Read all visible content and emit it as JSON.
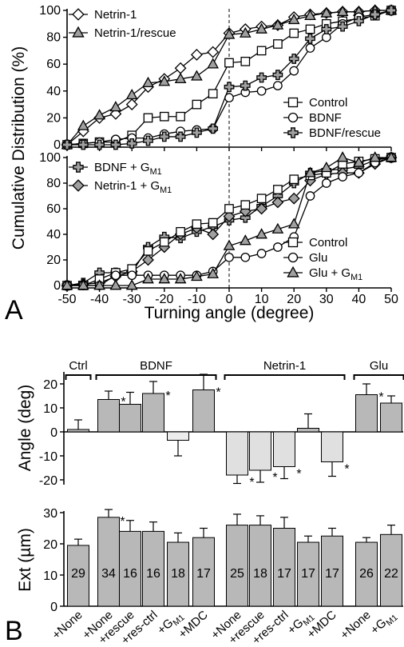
{
  "panel_labels": {
    "A": "A",
    "B": "B"
  },
  "chart_data": [
    {
      "type": "line",
      "panel": "A-top",
      "ylabel": "Cumulative Distribution (%)",
      "xlabel": "Turning angle (degree)",
      "xlim": [
        -50,
        50
      ],
      "ylim": [
        0,
        100
      ],
      "xticks": [
        "-50",
        "-40",
        "-30",
        "-20",
        "-10",
        "0",
        "10",
        "20",
        "30",
        "40",
        "50"
      ],
      "yticks": [
        "0",
        "20",
        "40",
        "60",
        "80",
        "100"
      ],
      "legend_top": "top-left",
      "legend_bottom": "bottom-right",
      "series": [
        {
          "name": "Netrin-1",
          "marker": "diamond",
          "fill": "#ffffff",
          "x": [
            -50,
            -45,
            -40,
            -35,
            -30,
            -25,
            -20,
            -15,
            -10,
            -5,
            0,
            5,
            10,
            15,
            20,
            25,
            30,
            35,
            40,
            45,
            50
          ],
          "y": [
            0,
            10,
            20,
            23,
            30,
            43,
            49,
            57,
            67,
            69,
            83,
            86,
            88,
            89,
            95,
            97,
            98,
            99,
            99,
            100,
            100
          ]
        },
        {
          "name": "Netrin-1/rescue",
          "marker": "triangle",
          "fill": "#a0a0a0",
          "x": [
            -50,
            -45,
            -40,
            -35,
            -30,
            -25,
            -20,
            -15,
            -10,
            -5,
            0,
            5,
            10,
            15,
            20,
            25,
            30,
            35,
            40,
            45,
            50
          ],
          "y": [
            0,
            14,
            22,
            28,
            37,
            46,
            47,
            49,
            51,
            60,
            82,
            83,
            86,
            89,
            93,
            96,
            98,
            99,
            99,
            100,
            100
          ]
        },
        {
          "name": "Control",
          "marker": "square",
          "fill": "#ffffff",
          "x": [
            -50,
            -45,
            -40,
            -35,
            -30,
            -25,
            -20,
            -15,
            -10,
            -5,
            0,
            5,
            10,
            15,
            20,
            25,
            30,
            35,
            40,
            45,
            50
          ],
          "y": [
            0,
            1,
            2,
            2,
            7,
            20,
            21,
            21,
            30,
            38,
            61,
            62,
            70,
            75,
            83,
            86,
            90,
            92,
            94,
            96,
            100
          ]
        },
        {
          "name": "BDNF",
          "marker": "circle",
          "fill": "#ffffff",
          "x": [
            -50,
            -45,
            -40,
            -35,
            -30,
            -25,
            -20,
            -15,
            -10,
            -5,
            0,
            5,
            10,
            15,
            20,
            25,
            30,
            35,
            40,
            45,
            50
          ],
          "y": [
            0,
            1,
            2,
            4,
            5,
            5,
            8,
            10,
            11,
            12,
            35,
            39,
            40,
            44,
            55,
            72,
            80,
            90,
            95,
            97,
            100
          ]
        },
        {
          "name": "BDNF/rescue",
          "marker": "cross",
          "fill": "#a0a0a0",
          "x": [
            -50,
            -45,
            -40,
            -35,
            -30,
            -25,
            -20,
            -15,
            -10,
            -5,
            0,
            5,
            10,
            15,
            20,
            25,
            30,
            35,
            40,
            45,
            50
          ],
          "y": [
            0,
            0,
            0,
            0,
            1,
            3,
            6,
            6,
            9,
            12,
            43,
            44,
            50,
            52,
            64,
            79,
            86,
            88,
            92,
            97,
            100
          ]
        }
      ]
    },
    {
      "type": "line",
      "panel": "A-bottom",
      "ylabel": "Cumulative Distribution (%)",
      "xlabel": "Turning angle (degree)",
      "xlim": [
        -50,
        50
      ],
      "ylim": [
        0,
        100
      ],
      "xticks": [
        "-50",
        "-40",
        "-30",
        "-20",
        "-10",
        "0",
        "10",
        "20",
        "30",
        "40",
        "50"
      ],
      "yticks": [
        "0",
        "20",
        "40",
        "60",
        "80",
        "100"
      ],
      "legend_top": "top-left",
      "legend_bottom": "bottom-right",
      "series": [
        {
          "name": "BDNF + G",
          "name_sub": "M1",
          "marker": "cross",
          "fill": "#a0a0a0",
          "x": [
            -50,
            -45,
            -40,
            -35,
            -30,
            -25,
            -20,
            -15,
            -10,
            -5,
            0,
            5,
            10,
            15,
            20,
            25,
            30,
            35,
            40,
            45,
            50
          ],
          "y": [
            0,
            2,
            10,
            10,
            10,
            30,
            38,
            37,
            42,
            46,
            51,
            53,
            62,
            70,
            80,
            88,
            90,
            91,
            93,
            98,
            100
          ]
        },
        {
          "name": "Netrin-1 + G",
          "name_sub": "M1",
          "marker": "diamond",
          "fill": "#a0a0a0",
          "x": [
            -50,
            -45,
            -40,
            -35,
            -30,
            -25,
            -20,
            -15,
            -10,
            -5,
            0,
            5,
            10,
            15,
            20,
            25,
            30,
            35,
            40,
            45,
            50
          ],
          "y": [
            0,
            1,
            2,
            7,
            11,
            20,
            30,
            40,
            45,
            40,
            54,
            58,
            60,
            65,
            68,
            82,
            87,
            88,
            88,
            95,
            100
          ]
        },
        {
          "name": "Control",
          "marker": "square",
          "fill": "#ffffff",
          "x": [
            -50,
            -45,
            -40,
            -35,
            -30,
            -25,
            -20,
            -15,
            -10,
            -5,
            0,
            5,
            10,
            15,
            20,
            25,
            30,
            35,
            40,
            45,
            50
          ],
          "y": [
            0,
            0,
            5,
            10,
            13,
            27,
            34,
            42,
            48,
            49,
            60,
            63,
            68,
            75,
            83,
            86,
            88,
            95,
            97,
            99,
            100
          ]
        },
        {
          "name": "Glu",
          "marker": "circle",
          "fill": "#ffffff",
          "x": [
            -50,
            -45,
            -40,
            -35,
            -30,
            -25,
            -20,
            -15,
            -10,
            -5,
            0,
            5,
            10,
            15,
            20,
            25,
            30,
            35,
            40,
            45,
            50
          ],
          "y": [
            0,
            0,
            0,
            8,
            8,
            8,
            8,
            8,
            8,
            11,
            22,
            22,
            25,
            30,
            38,
            70,
            80,
            85,
            88,
            96,
            100
          ]
        },
        {
          "name": "Glu + G",
          "name_sub": "M1",
          "marker": "triangle",
          "fill": "#a0a0a0",
          "x": [
            -50,
            -45,
            -40,
            -35,
            -30,
            -25,
            -20,
            -15,
            -10,
            -5,
            0,
            5,
            10,
            15,
            20,
            25,
            30,
            35,
            40,
            45,
            50
          ],
          "y": [
            0,
            0,
            0,
            0,
            0,
            5,
            5,
            5,
            7,
            9,
            31,
            35,
            40,
            44,
            48,
            88,
            92,
            100,
            96,
            100,
            100
          ]
        }
      ]
    },
    {
      "type": "bar",
      "panel": "B-top",
      "ylabel": "Angle (deg)",
      "ylim": [
        -22,
        25
      ],
      "yticks": [
        "-20",
        "-10",
        "0",
        "10",
        "20"
      ],
      "groups": [
        {
          "label": "Ctrl",
          "start": 0,
          "end": 0
        },
        {
          "label": "BDNF",
          "start": 1,
          "end": 5
        },
        {
          "label": "Netrin-1",
          "start": 6,
          "end": 10
        },
        {
          "label": "Glu",
          "start": 11,
          "end": 12
        }
      ],
      "categories": [
        "+None",
        "+None",
        "+rescue",
        "+res-ctrl",
        "+GM1",
        "+MDC",
        "+None",
        "+rescue",
        "+res-ctrl",
        "+GM1",
        "+MDC",
        "+None",
        "+GM1"
      ],
      "values": [
        1,
        13.5,
        11.5,
        16,
        -3.5,
        17.5,
        -18,
        -16,
        -14.5,
        1.5,
        -12.5,
        15.5,
        12
      ],
      "errors": [
        4,
        3.5,
        5,
        5,
        6.5,
        6.5,
        3.5,
        5,
        5,
        6,
        6,
        4.5,
        3
      ],
      "significant": [
        false,
        true,
        true,
        true,
        false,
        true,
        true,
        true,
        true,
        false,
        true,
        true,
        true
      ],
      "significance_marker": "*",
      "fills": [
        "#b8b8b8",
        "#b8b8b8",
        "#b8b8b8",
        "#b8b8b8",
        "#ececec",
        "#b8b8b8",
        "#e0e0e0",
        "#e0e0e0",
        "#e0e0e0",
        "#b8b8b8",
        "#e0e0e0",
        "#b8b8b8",
        "#b8b8b8"
      ]
    },
    {
      "type": "bar",
      "panel": "B-bottom",
      "ylabel": "Ext (µm)",
      "ylim": [
        0,
        30
      ],
      "yticks": [
        "0",
        "10",
        "20",
        "30"
      ],
      "categories": [
        "+None",
        "+None",
        "+rescue",
        "+res-ctrl",
        "+GM1",
        "+MDC",
        "+None",
        "+rescue",
        "+res-ctrl",
        "+GM1",
        "+MDC",
        "+None",
        "+GM1"
      ],
      "values": [
        19.5,
        28.5,
        24,
        24,
        20.5,
        22,
        26,
        26,
        25,
        20.5,
        22.5,
        20.5,
        23
      ],
      "errors": [
        2,
        2.5,
        3.5,
        3,
        3,
        3,
        3.5,
        3,
        3.5,
        2,
        2.5,
        1.5,
        3
      ],
      "counts": [
        "29",
        "34",
        "16",
        "16",
        "18",
        "17",
        "25",
        "18",
        "17",
        "17",
        "17",
        "26",
        "22"
      ],
      "significant": [
        false,
        true,
        false,
        false,
        false,
        false,
        false,
        false,
        false,
        false,
        false,
        false,
        false
      ],
      "significance_marker": "*",
      "tick_labels": [
        {
          "main": "+None",
          "sub": ""
        },
        {
          "main": "+None",
          "sub": ""
        },
        {
          "main": "+rescue",
          "sub": ""
        },
        {
          "main": "+res-ctrl",
          "sub": ""
        },
        {
          "main": "+G",
          "sub": "M1"
        },
        {
          "main": "+MDC",
          "sub": ""
        },
        {
          "main": "+None",
          "sub": ""
        },
        {
          "main": "+rescue",
          "sub": ""
        },
        {
          "main": "+res-ctrl",
          "sub": ""
        },
        {
          "main": "+G",
          "sub": "M1"
        },
        {
          "main": "+MDC",
          "sub": ""
        },
        {
          "main": "+None",
          "sub": ""
        },
        {
          "main": "+G",
          "sub": "M1"
        }
      ]
    }
  ]
}
